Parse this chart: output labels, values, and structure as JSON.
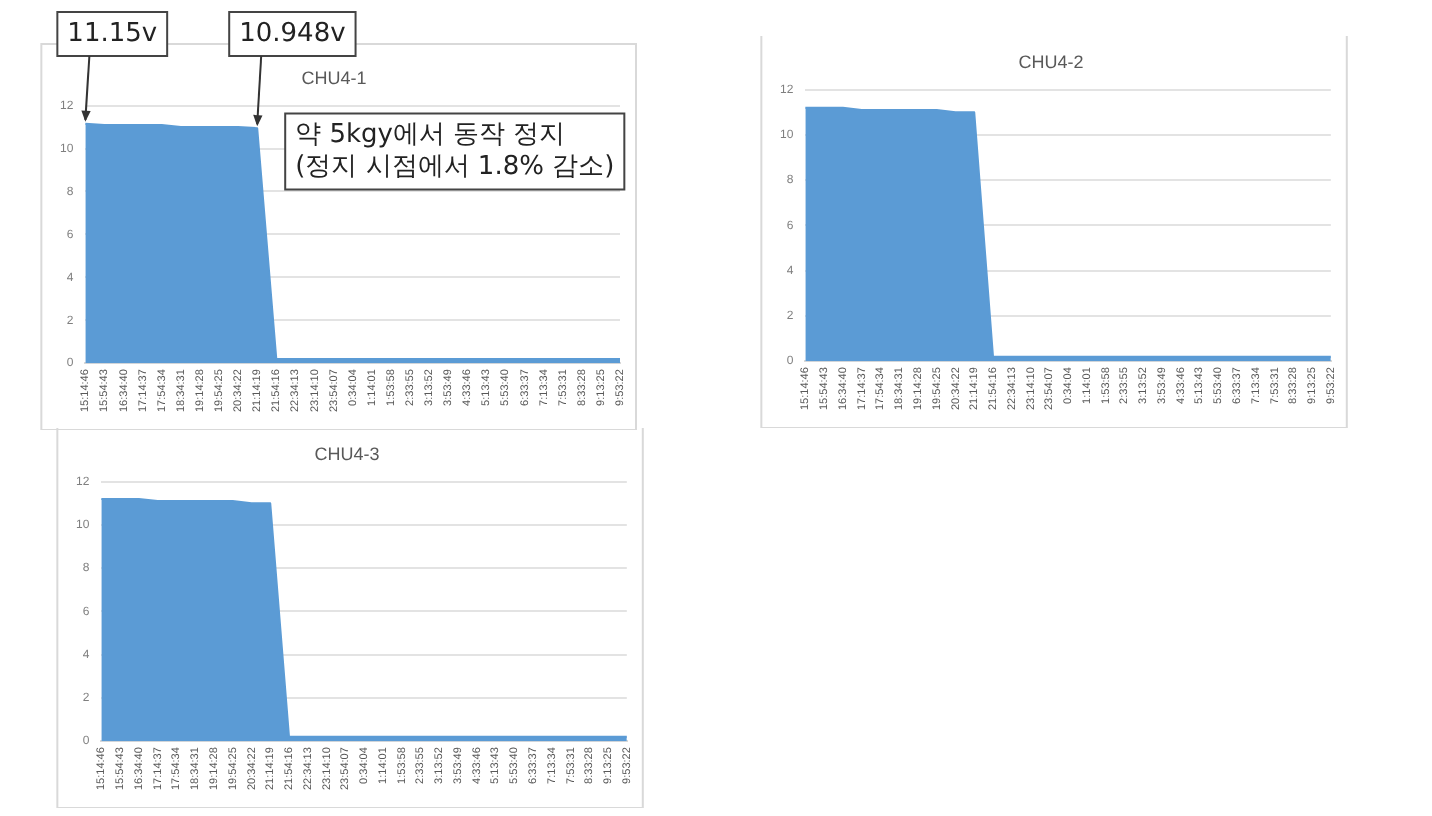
{
  "chart_data": [
    {
      "type": "area",
      "title": "CHU4-1",
      "categories": [
        "15:14:46",
        "15:54:43",
        "16:34:40",
        "17:14:37",
        "17:54:34",
        "18:34:31",
        "19:14:28",
        "19:54:25",
        "20:34:22",
        "21:14:19",
        "21:54:16",
        "22:34:13",
        "23:14:10",
        "23:54:07",
        "0:34:04",
        "1:14:01",
        "1:53:58",
        "2:33:55",
        "3:13:52",
        "3:53:49",
        "4:33:46",
        "5:13:43",
        "5:53:40",
        "6:33:37",
        "7:13:34",
        "7:53:31",
        "8:33:28",
        "9:13:25",
        "9:53:22"
      ],
      "series": [
        {
          "color": "#5b9bd5",
          "values": [
            11.15,
            11.1,
            11.1,
            11.1,
            11.1,
            11.0,
            11.0,
            11.0,
            11.0,
            10.948,
            0.2,
            0.2,
            0.2,
            0.2,
            0.2,
            0.2,
            0.2,
            0.2,
            0.2,
            0.2,
            0.2,
            0.2,
            0.2,
            0.2,
            0.2,
            0.2,
            0.2,
            0.2,
            0.2
          ]
        }
      ],
      "ylim": [
        0,
        12
      ],
      "yticks": [
        0,
        2,
        4,
        6,
        8,
        10,
        12
      ],
      "grid": "y",
      "legend": false,
      "annotations": [
        {
          "text": "11.15v",
          "x": "15:14:46",
          "y": 11.15
        },
        {
          "text": "10.948v",
          "x": "21:14:19",
          "y": 10.948
        },
        "약 5kgy에서 동작 정지\n(정지 시점에서 1.8% 감소)"
      ]
    },
    {
      "type": "area",
      "title": "CHU4-2",
      "categories": [
        "15:14:46",
        "15:54:43",
        "16:34:40",
        "17:14:37",
        "17:54:34",
        "18:34:31",
        "19:14:28",
        "19:54:25",
        "20:34:22",
        "21:14:19",
        "21:54:16",
        "22:34:13",
        "23:14:10",
        "23:54:07",
        "0:34:04",
        "1:14:01",
        "1:53:58",
        "2:33:55",
        "3:13:52",
        "3:53:49",
        "4:33:46",
        "5:13:43",
        "5:53:40",
        "6:33:37",
        "7:13:34",
        "7:53:31",
        "8:33:28",
        "9:13:25",
        "9:53:22"
      ],
      "series": [
        {
          "color": "#5b9bd5",
          "values": [
            11.2,
            11.2,
            11.2,
            11.1,
            11.1,
            11.1,
            11.1,
            11.1,
            11.0,
            11.0,
            0.2,
            0.2,
            0.2,
            0.2,
            0.2,
            0.2,
            0.2,
            0.2,
            0.2,
            0.2,
            0.2,
            0.2,
            0.2,
            0.2,
            0.2,
            0.2,
            0.2,
            0.2,
            0.2
          ]
        }
      ],
      "ylim": [
        0,
        12
      ],
      "yticks": [
        0,
        2,
        4,
        6,
        8,
        10,
        12
      ],
      "grid": "y",
      "legend": false
    },
    {
      "type": "area",
      "title": "CHU4-3",
      "categories": [
        "15:14:46",
        "15:54:43",
        "16:34:40",
        "17:14:37",
        "17:54:34",
        "18:34:31",
        "19:14:28",
        "19:54:25",
        "20:34:22",
        "21:14:19",
        "21:54:16",
        "22:34:13",
        "23:14:10",
        "23:54:07",
        "0:34:04",
        "1:14:01",
        "1:53:58",
        "2:33:55",
        "3:13:52",
        "3:53:49",
        "4:33:46",
        "5:13:43",
        "5:53:40",
        "6:33:37",
        "7:13:34",
        "7:53:31",
        "8:33:28",
        "9:13:25",
        "9:53:22"
      ],
      "series": [
        {
          "color": "#5b9bd5",
          "values": [
            11.2,
            11.2,
            11.2,
            11.1,
            11.1,
            11.1,
            11.1,
            11.1,
            11.0,
            11.0,
            0.2,
            0.2,
            0.2,
            0.2,
            0.2,
            0.2,
            0.2,
            0.2,
            0.2,
            0.2,
            0.2,
            0.2,
            0.2,
            0.2,
            0.2,
            0.2,
            0.2,
            0.2,
            0.2
          ]
        }
      ],
      "ylim": [
        0,
        12
      ],
      "yticks": [
        0,
        2,
        4,
        6,
        8,
        10,
        12
      ],
      "grid": "y",
      "legend": false
    }
  ]
}
